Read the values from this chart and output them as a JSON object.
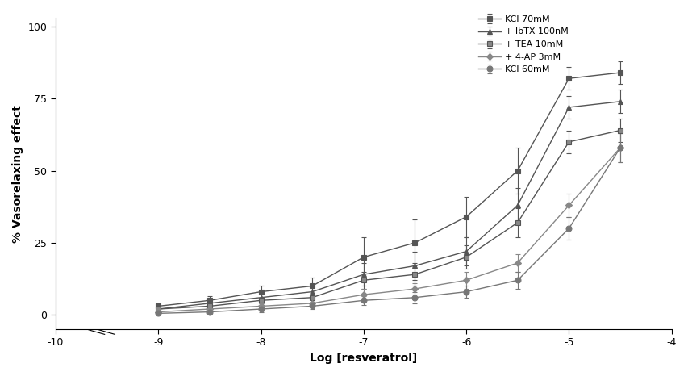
{
  "title": "",
  "xlabel": "Log [resveratrol]",
  "ylabel": "% Vasorelaxing effect",
  "xlim": [
    -10,
    -4
  ],
  "ylim": [
    -5,
    103
  ],
  "xticks": [
    -10,
    -9,
    -8,
    -7,
    -6,
    -5,
    -4
  ],
  "yticks": [
    0,
    25,
    50,
    75,
    100
  ],
  "x_values": [
    -9,
    -8.5,
    -8,
    -7.5,
    -7,
    -6.5,
    -6,
    -5.5,
    -5,
    -4.5
  ],
  "series": [
    {
      "label": "KCl 70mM",
      "marker": "s",
      "color": "#555555",
      "linestyle": "-",
      "linewidth": 1.0,
      "markersize": 5,
      "y": [
        3,
        5,
        8,
        10,
        20,
        25,
        34,
        50,
        82,
        84
      ],
      "yerr": [
        1,
        1.5,
        2,
        3,
        7,
        8,
        7,
        8,
        4,
        4
      ]
    },
    {
      "label": "+ IbTX 100nM",
      "marker": "^",
      "color": "#555555",
      "linestyle": "-",
      "linewidth": 1.0,
      "markersize": 5,
      "y": [
        2,
        4,
        6,
        8,
        14,
        17,
        22,
        38,
        72,
        74
      ],
      "yerr": [
        1,
        1,
        1.5,
        2,
        4,
        5,
        5,
        6,
        4,
        4
      ]
    },
    {
      "label": "+ TEA 10mM",
      "marker": "s",
      "color": "#555555",
      "linestyle": "-",
      "linewidth": 1.0,
      "markersize": 4,
      "markerfacecolor": "#888888",
      "y": [
        2,
        3,
        5,
        6,
        12,
        14,
        20,
        32,
        60,
        64
      ],
      "yerr": [
        0.5,
        1,
        1,
        1.5,
        3,
        4,
        4,
        5,
        4,
        4
      ]
    },
    {
      "label": "+ 4-AP 3mM",
      "marker": "D",
      "color": "#888888",
      "linestyle": "-",
      "linewidth": 1.0,
      "markersize": 4,
      "y": [
        1,
        2,
        3,
        4,
        7,
        9,
        12,
        18,
        38,
        58
      ],
      "yerr": [
        0.5,
        0.5,
        1,
        1,
        2,
        2,
        3,
        3,
        4,
        5
      ]
    },
    {
      "label": "KCl 60mM",
      "marker": "o",
      "color": "#777777",
      "linestyle": "-",
      "linewidth": 1.0,
      "markersize": 5,
      "y": [
        0.5,
        1,
        2,
        3,
        5,
        6,
        8,
        12,
        30,
        58
      ],
      "yerr": [
        0.5,
        0.5,
        1,
        1,
        1.5,
        2,
        2,
        3,
        4,
        5
      ]
    }
  ],
  "legend_fontsize": 8,
  "axis_fontsize": 10,
  "tick_fontsize": 9
}
